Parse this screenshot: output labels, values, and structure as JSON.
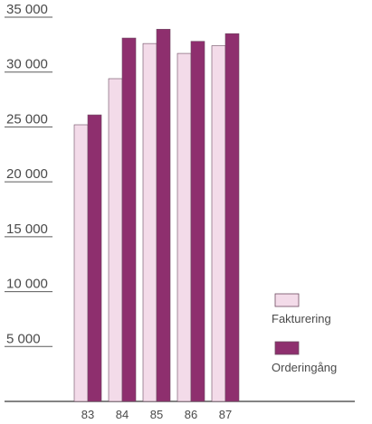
{
  "chart_data": {
    "type": "bar",
    "categories": [
      "83",
      "84",
      "85",
      "86",
      "87"
    ],
    "series": [
      {
        "name": "Fakturering",
        "values": [
          25200,
          29400,
          32600,
          31700,
          32400
        ],
        "color": "#f3dbe9"
      },
      {
        "name": "Orderingång",
        "values": [
          26100,
          33100,
          33900,
          32800,
          33500
        ],
        "color": "#8e2f6e"
      }
    ],
    "ylim": [
      0,
      35000
    ],
    "yticks": [
      0,
      5000,
      10000,
      15000,
      20000,
      25000,
      30000,
      35000
    ],
    "ytick_labels": [
      "",
      "5 000",
      "10 000",
      "15 000",
      "20 000",
      "25 000",
      "30 000",
      "35 000"
    ],
    "grid": true,
    "legend_position": "right"
  }
}
